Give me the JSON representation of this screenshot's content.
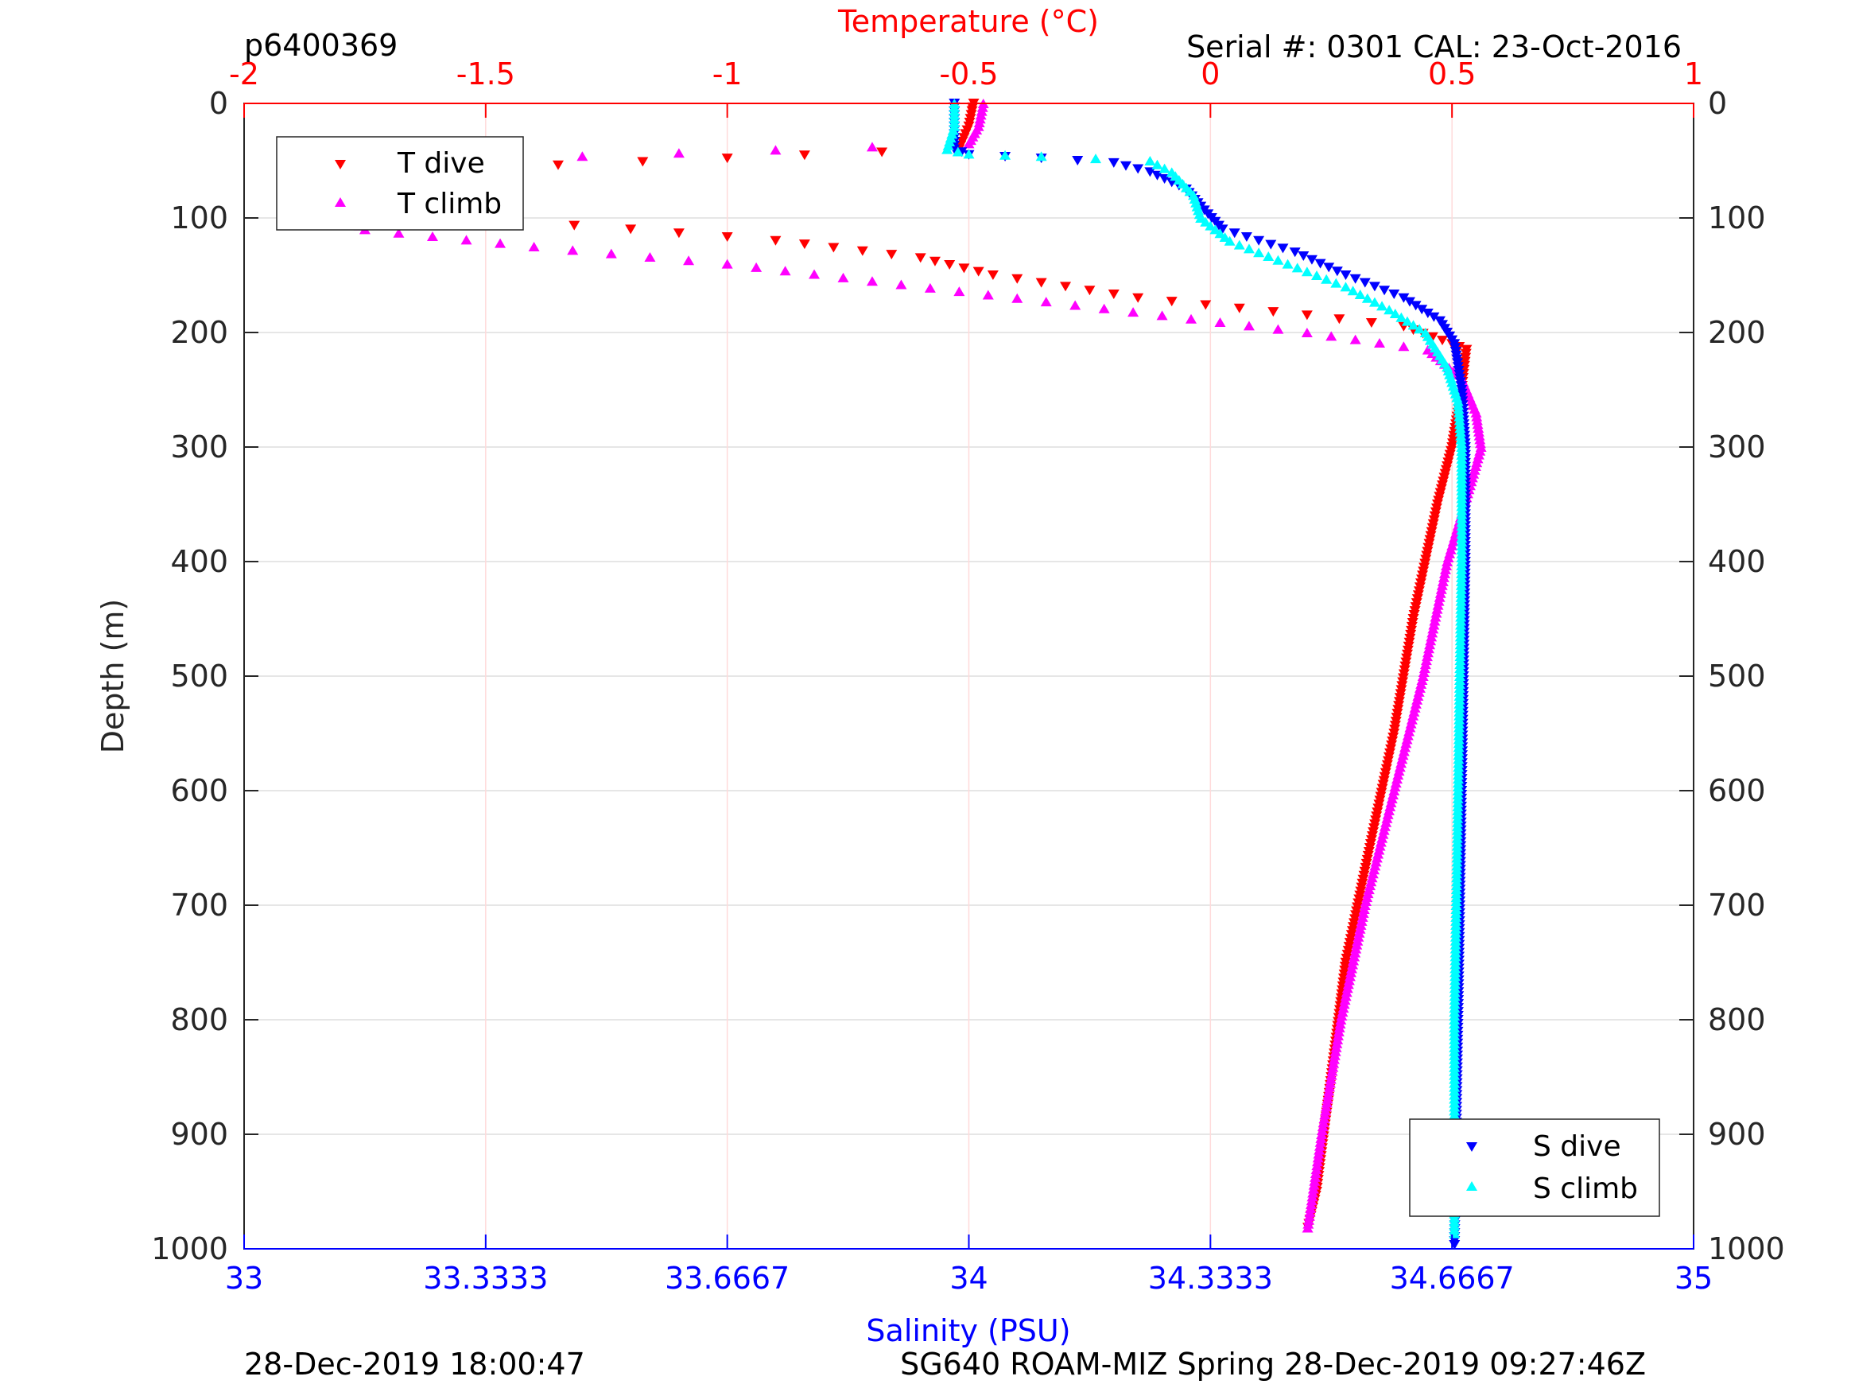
{
  "header": {
    "profile_id": "p6400369",
    "serial": "Serial #: 0301  CAL: 23-Oct-2016"
  },
  "footer": {
    "left": "28-Dec-2019 18:00:47",
    "right": "SG640 ROAM-MIZ Spring 28-Dec-2019 09:27:46Z"
  },
  "colors": {
    "temperature_axis": "#ff0000",
    "salinity_axis": "#0000ff",
    "t_dive": "#ff0000",
    "t_climb": "#ff00ff",
    "s_dive": "#0000ff",
    "s_climb": "#00ffff"
  },
  "chart_data": {
    "type": "scatter",
    "title": "",
    "ylabel": "Depth (m)",
    "ylim": [
      1000,
      0
    ],
    "y_reversed": true,
    "y_ticks": [
      "0",
      "100",
      "200",
      "300",
      "400",
      "500",
      "600",
      "700",
      "800",
      "900",
      "1000"
    ],
    "top_axis": {
      "label": "Temperature (°C)",
      "lim": [
        -2,
        1
      ],
      "ticks": [
        "-2",
        "-1.5",
        "-1",
        "-0.5",
        "0",
        "0.5",
        "1"
      ]
    },
    "bottom_axis": {
      "label": "Salinity (PSU)",
      "lim": [
        33,
        35
      ],
      "ticks": [
        "33",
        "33.3333",
        "33.6667",
        "34",
        "34.3333",
        "34.6667",
        "35"
      ]
    },
    "grid": true,
    "legends": [
      {
        "location": "top-left",
        "entries": [
          "T dive",
          "T climb"
        ]
      },
      {
        "location": "bottom-right",
        "entries": [
          "S dive",
          "S climb"
        ]
      }
    ],
    "series": [
      {
        "name": "T dive",
        "axis": "temperature",
        "marker": "triangle-down",
        "points": [
          [
            -0.49,
            0
          ],
          [
            -0.5,
            20
          ],
          [
            -0.52,
            40
          ],
          [
            -1.0,
            48
          ],
          [
            -1.7,
            60
          ],
          [
            -1.82,
            80
          ],
          [
            -1.8,
            90
          ],
          [
            -1.55,
            100
          ],
          [
            -1.2,
            110
          ],
          [
            -0.9,
            120
          ],
          [
            -0.6,
            135
          ],
          [
            -0.45,
            150
          ],
          [
            -0.15,
            170
          ],
          [
            0.2,
            185
          ],
          [
            0.4,
            195
          ],
          [
            0.5,
            210
          ],
          [
            0.53,
            215
          ],
          [
            0.52,
            250
          ],
          [
            0.5,
            300
          ],
          [
            0.47,
            350
          ],
          [
            0.42,
            450
          ],
          [
            0.38,
            550
          ],
          [
            0.33,
            650
          ],
          [
            0.28,
            750
          ],
          [
            0.25,
            850
          ],
          [
            0.22,
            950
          ],
          [
            0.2,
            985
          ]
        ]
      },
      {
        "name": "T climb",
        "axis": "temperature",
        "marker": "triangle-up",
        "points": [
          [
            -0.47,
            0
          ],
          [
            -0.48,
            20
          ],
          [
            -0.5,
            35
          ],
          [
            -1.3,
            46
          ],
          [
            -1.75,
            55
          ],
          [
            -1.82,
            70
          ],
          [
            -1.82,
            90
          ],
          [
            -1.75,
            110
          ],
          [
            -1.4,
            125
          ],
          [
            -1.0,
            140
          ],
          [
            -0.7,
            155
          ],
          [
            -0.4,
            170
          ],
          [
            -0.1,
            185
          ],
          [
            0.2,
            200
          ],
          [
            0.45,
            215
          ],
          [
            0.52,
            240
          ],
          [
            0.55,
            270
          ],
          [
            0.56,
            300
          ],
          [
            0.54,
            330
          ],
          [
            0.49,
            400
          ],
          [
            0.44,
            500
          ],
          [
            0.38,
            600
          ],
          [
            0.32,
            700
          ],
          [
            0.27,
            800
          ],
          [
            0.23,
            900
          ],
          [
            0.2,
            985
          ]
        ]
      },
      {
        "name": "S dive",
        "axis": "salinity",
        "marker": "triangle-down",
        "points": [
          [
            33.98,
            0
          ],
          [
            33.98,
            20
          ],
          [
            33.98,
            40
          ],
          [
            34.0,
            45
          ],
          [
            34.1,
            48
          ],
          [
            34.2,
            52
          ],
          [
            34.25,
            60
          ],
          [
            34.3,
            75
          ],
          [
            34.32,
            90
          ],
          [
            34.35,
            110
          ],
          [
            34.45,
            130
          ],
          [
            34.52,
            150
          ],
          [
            34.6,
            170
          ],
          [
            34.65,
            190
          ],
          [
            34.67,
            210
          ],
          [
            34.68,
            250
          ],
          [
            34.685,
            300
          ],
          [
            34.685,
            400
          ],
          [
            34.68,
            600
          ],
          [
            34.675,
            800
          ],
          [
            34.67,
            1000
          ]
        ]
      },
      {
        "name": "S climb",
        "axis": "salinity",
        "marker": "triangle-up",
        "points": [
          [
            33.98,
            0
          ],
          [
            33.98,
            20
          ],
          [
            33.97,
            40
          ],
          [
            34.0,
            44
          ],
          [
            34.1,
            46
          ],
          [
            34.25,
            50
          ],
          [
            34.28,
            60
          ],
          [
            34.31,
            80
          ],
          [
            34.32,
            100
          ],
          [
            34.36,
            120
          ],
          [
            34.44,
            140
          ],
          [
            34.52,
            160
          ],
          [
            34.58,
            180
          ],
          [
            34.63,
            200
          ],
          [
            34.66,
            230
          ],
          [
            34.675,
            260
          ],
          [
            34.68,
            300
          ],
          [
            34.68,
            400
          ],
          [
            34.675,
            600
          ],
          [
            34.67,
            800
          ],
          [
            34.67,
            990
          ]
        ]
      }
    ]
  }
}
